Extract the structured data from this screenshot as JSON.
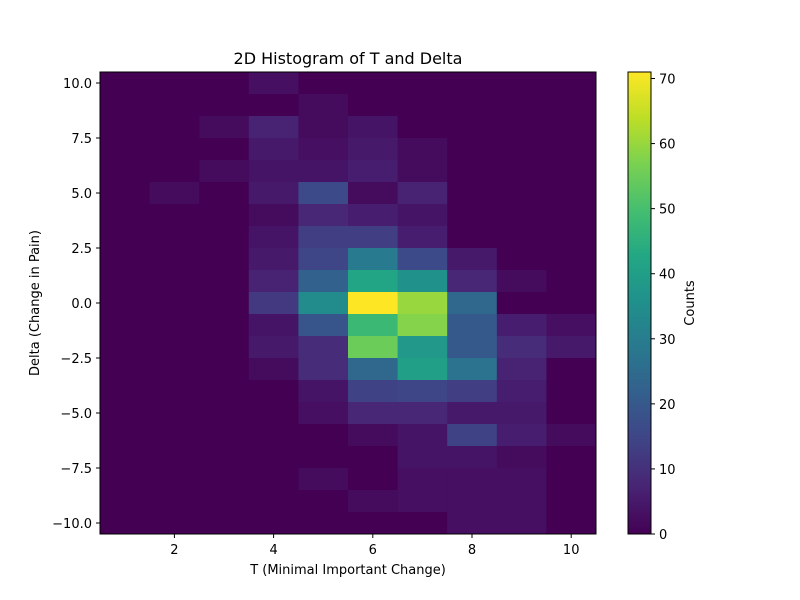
{
  "chart_data": {
    "type": "heatmap",
    "title": "2D Histogram of T and Delta",
    "xlabel": "T (Minimal Important Change)",
    "ylabel": "Delta (Change in Pain)",
    "colorbar_label": "Counts",
    "colormap": "viridis",
    "x_bins": [
      1,
      2,
      3,
      4,
      5,
      6,
      7,
      8,
      9,
      10
    ],
    "y_bins": [
      10,
      9,
      8,
      7,
      6,
      5,
      4,
      3,
      2,
      1,
      0,
      -1,
      -2,
      -3,
      -4,
      -5,
      -6,
      -7,
      -8,
      -9,
      -10
    ],
    "xlim": [
      0.5,
      10.5
    ],
    "ylim": [
      -10.5,
      10.5
    ],
    "xticks": [
      2,
      4,
      6,
      8,
      10
    ],
    "xtick_labels": [
      "2",
      "4",
      "6",
      "8",
      "10"
    ],
    "yticks": [
      10,
      7.5,
      5,
      2.5,
      0,
      -2.5,
      -5,
      -7.5,
      -10
    ],
    "ytick_labels": [
      "10.0",
      "7.5",
      "5.0",
      "2.5",
      "0.0",
      "−2.5",
      "−5.0",
      "−7.5",
      "−10.0"
    ],
    "color_range": [
      0,
      71
    ],
    "colorbar_ticks": [
      0,
      10,
      20,
      30,
      40,
      50,
      60,
      70
    ],
    "colorbar_tick_labels": [
      "0",
      "10",
      "20",
      "30",
      "40",
      "50",
      "60",
      "70"
    ],
    "counts": [
      [
        0,
        0,
        0,
        3,
        0,
        0,
        0,
        0,
        0,
        0
      ],
      [
        0,
        0,
        0,
        0,
        2,
        0,
        0,
        0,
        0,
        0
      ],
      [
        0,
        0,
        2,
        7,
        2,
        4,
        0,
        0,
        0,
        0
      ],
      [
        0,
        0,
        0,
        5,
        3,
        5,
        2,
        0,
        0,
        0
      ],
      [
        0,
        0,
        2,
        4,
        4,
        6,
        2,
        0,
        0,
        0
      ],
      [
        0,
        2,
        0,
        5,
        16,
        2,
        7,
        0,
        0,
        0
      ],
      [
        0,
        0,
        0,
        2,
        8,
        6,
        4,
        0,
        0,
        0
      ],
      [
        0,
        0,
        0,
        4,
        13,
        13,
        6,
        0,
        0,
        0
      ],
      [
        0,
        0,
        0,
        5,
        15,
        29,
        16,
        5,
        0,
        0
      ],
      [
        0,
        0,
        0,
        7,
        22,
        42,
        36,
        8,
        2,
        0
      ],
      [
        0,
        0,
        0,
        12,
        34,
        71,
        60,
        24,
        0,
        0
      ],
      [
        0,
        0,
        0,
        4,
        19,
        48,
        58,
        20,
        6,
        3
      ],
      [
        0,
        0,
        0,
        5,
        9,
        55,
        38,
        20,
        9,
        5
      ],
      [
        0,
        0,
        0,
        2,
        9,
        24,
        40,
        27,
        7,
        0
      ],
      [
        0,
        0,
        0,
        0,
        4,
        14,
        15,
        13,
        6,
        0
      ],
      [
        0,
        0,
        0,
        0,
        3,
        8,
        8,
        5,
        5,
        0
      ],
      [
        0,
        0,
        0,
        0,
        0,
        2,
        4,
        14,
        6,
        2
      ],
      [
        0,
        0,
        0,
        0,
        0,
        0,
        4,
        4,
        2,
        0
      ],
      [
        0,
        0,
        0,
        0,
        2,
        0,
        3,
        3,
        3,
        0
      ],
      [
        0,
        0,
        0,
        0,
        0,
        2,
        3,
        3,
        3,
        0
      ],
      [
        0,
        0,
        0,
        0,
        0,
        0,
        0,
        3,
        3,
        0
      ]
    ]
  }
}
